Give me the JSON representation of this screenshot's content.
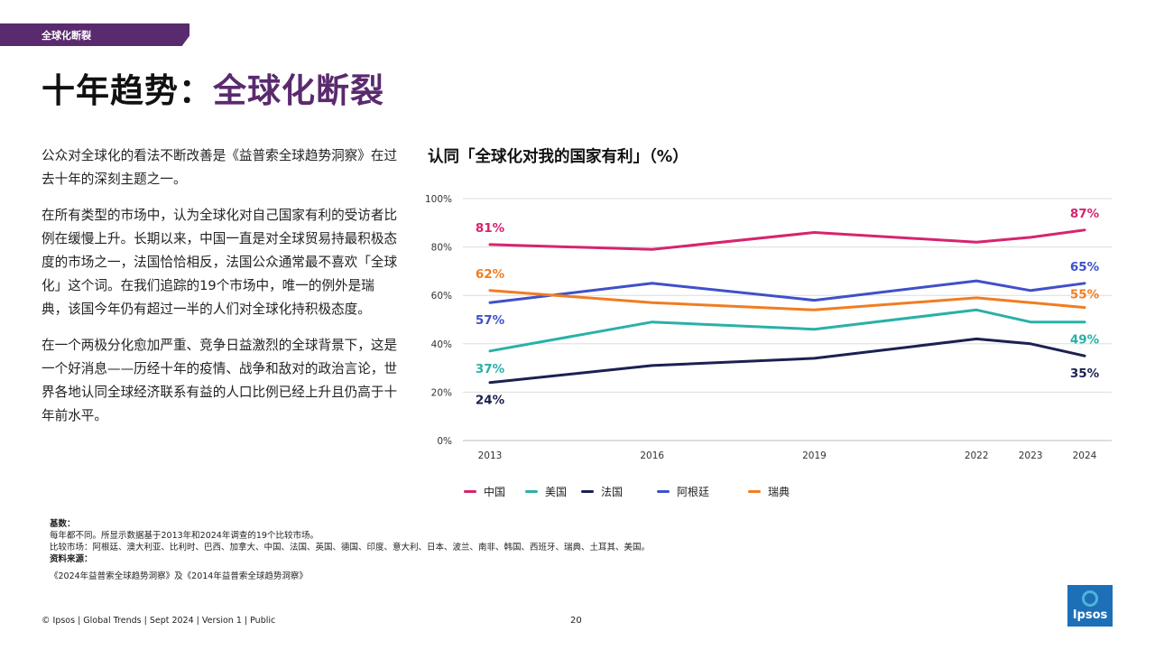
{
  "section_tag": "全球化断裂",
  "title": {
    "main": "十年趋势：",
    "accent": "全球化断裂"
  },
  "body": {
    "p1": "公众对全球化的看法不断改善是《益普索全球趋势洞察》在过去十年的深刻主题之一。",
    "p2": "在所有类型的市场中，认为全球化对自己国家有利的受访者比例在缓慢上升。长期以来，中国一直是对全球贸易持最积极态度的市场之一，法国恰恰相反，法国公众通常最不喜欢「全球化」这个词。在我们追踪的19个市场中，唯一的例外是瑞典，该国今年仍有超过一半的人们对全球化持积极态度。",
    "p3": "在一个两极分化愈加严重、竞争日益激烈的全球背景下，这是一个好消息——历经十年的疫情、战争和敌对的政治言论，世界各地认同全球经济联系有益的人口比例已经上升且仍高于十年前水平。"
  },
  "chart_data": {
    "type": "line",
    "title": "认同「全球化对我的国家有利」（%）",
    "x": [
      2013,
      2016,
      2019,
      2022,
      2023,
      2024
    ],
    "y_ticks": [
      "0%",
      "20%",
      "40%",
      "60%",
      "80%",
      "100%"
    ],
    "ylim": [
      0,
      100
    ],
    "grid": true,
    "legend_position": "bottom",
    "series": [
      {
        "name": "中国",
        "color": "#d6246e",
        "values": [
          81,
          79,
          86,
          82,
          84,
          87
        ],
        "start_label": "81%",
        "end_label": "87%"
      },
      {
        "name": "美国",
        "color": "#2ab0a8",
        "values": [
          37,
          49,
          46,
          54,
          49,
          49
        ],
        "start_label": "37%",
        "end_label": "49%"
      },
      {
        "name": "法国",
        "color": "#1b2150",
        "values": [
          24,
          31,
          34,
          42,
          40,
          35
        ],
        "start_label": "24%",
        "end_label": "35%"
      },
      {
        "name": "阿根廷",
        "color": "#4050c8",
        "values": [
          57,
          65,
          58,
          66,
          62,
          65
        ],
        "start_label": "57%",
        "end_label": "65%"
      },
      {
        "name": "瑞典",
        "color": "#f07d22",
        "values": [
          62,
          57,
          54,
          59,
          57,
          55
        ],
        "start_label": "62%",
        "end_label": "55%"
      }
    ]
  },
  "footnotes": {
    "base_label": "基数：",
    "base_text": "每年都不同。所显示数据基于2013年和2024年调查的19个比较市场。",
    "markets": "比较市场：阿根廷、澳大利亚、比利时、巴西、加拿大、中国、法国、英国、德国、印度、意大利、日本、波兰、南非、韩国、西班牙、瑞典、土耳其、美国。",
    "source_label": "资料来源：",
    "source_text": "《2024年益普索全球趋势洞察》及《2014年益普索全球趋势洞察》"
  },
  "footer": {
    "left": "© Ipsos | Global Trends | Sept 2024 | Version 1 | Public",
    "page": "20"
  },
  "logo": "Ipsos"
}
